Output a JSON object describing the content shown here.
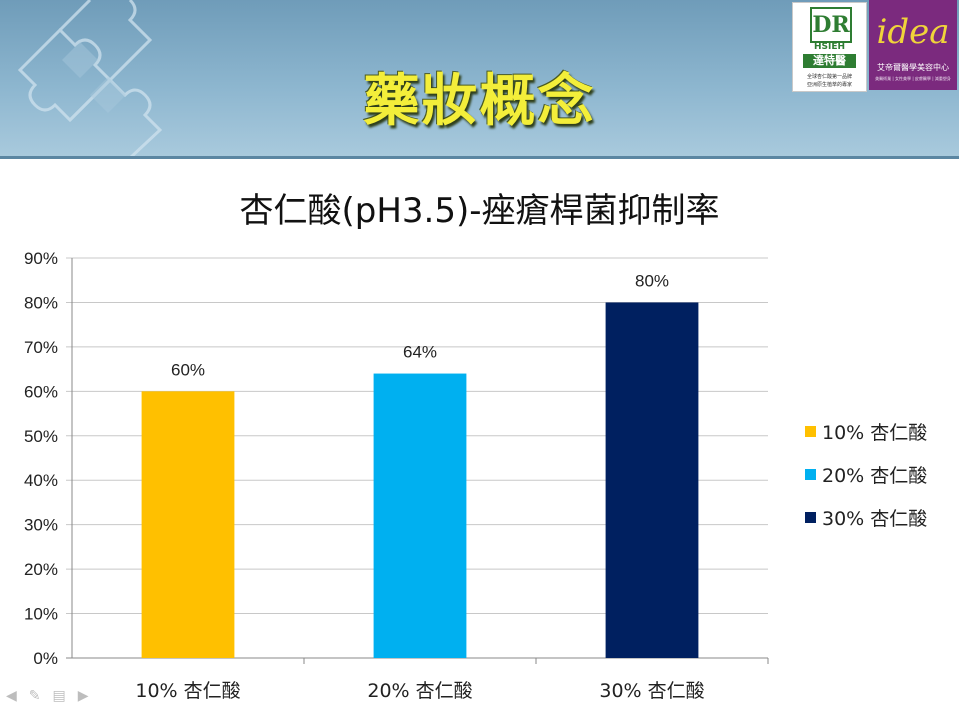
{
  "slide": {
    "title": "藥妝概念"
  },
  "logos": {
    "dr": {
      "mark": "DR",
      "hsieh": "HSIEH",
      "name": "達特醫",
      "tagline_1": "全球杏仁酸第一品牌",
      "tagline_2": "亞洲原生植萃的專家"
    },
    "idea": {
      "mark": "idea",
      "name": "艾帝爾醫學美容中心",
      "sub": "美醫術業 | 女性美學 | 皮膚醫學 | 減重塑身"
    }
  },
  "colors": {
    "header": "#7fa9c4",
    "title_text": "#f3ee3a",
    "series_10": "#ffc000",
    "series_20": "#00b0f0",
    "series_30": "#002060"
  },
  "chart_data": {
    "type": "bar",
    "title": "杏仁酸(pH3.5)-痤瘡桿菌抑制率",
    "categories": [
      "10% 杏仁酸",
      "20% 杏仁酸",
      "30% 杏仁酸"
    ],
    "values": [
      0.6,
      0.64,
      0.8
    ],
    "data_labels": [
      "60%",
      "64%",
      "80%"
    ],
    "bar_colors": [
      "#ffc000",
      "#00b0f0",
      "#002060"
    ],
    "legend": [
      "10% 杏仁酸",
      "20% 杏仁酸",
      "30% 杏仁酸"
    ],
    "legend_position": "right",
    "ylim": [
      0,
      0.9
    ],
    "yticks": [
      0,
      0.1,
      0.2,
      0.3,
      0.4,
      0.5,
      0.6,
      0.7,
      0.8,
      0.9
    ],
    "ytick_labels": [
      "0%",
      "10%",
      "20%",
      "30%",
      "40%",
      "50%",
      "60%",
      "70%",
      "80%",
      "90%"
    ],
    "xlabel": "",
    "ylabel": "",
    "grid": true
  }
}
